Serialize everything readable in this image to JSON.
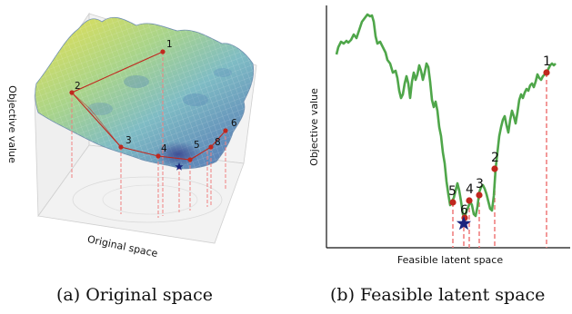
{
  "panels": {
    "left": {
      "caption": "(a) Original space",
      "z_label": "Objective value",
      "x_label": "Original space",
      "point_labels": [
        "1",
        "2",
        "3",
        "4",
        "5",
        "6",
        "8"
      ]
    },
    "right": {
      "caption": "(b) Feasible latent space",
      "y_label": "Objective value",
      "x_label": "Feasible latent space",
      "point_labels": [
        "1",
        "2",
        "3",
        "4",
        "5",
        "6"
      ]
    }
  },
  "colors": {
    "curve": "#4fa64a",
    "points": "#c0271e",
    "drop_lines": "#f08080",
    "star": "#1a237e",
    "surface_high": "#e8e14a",
    "surface_low": "#3a4fa0"
  }
}
